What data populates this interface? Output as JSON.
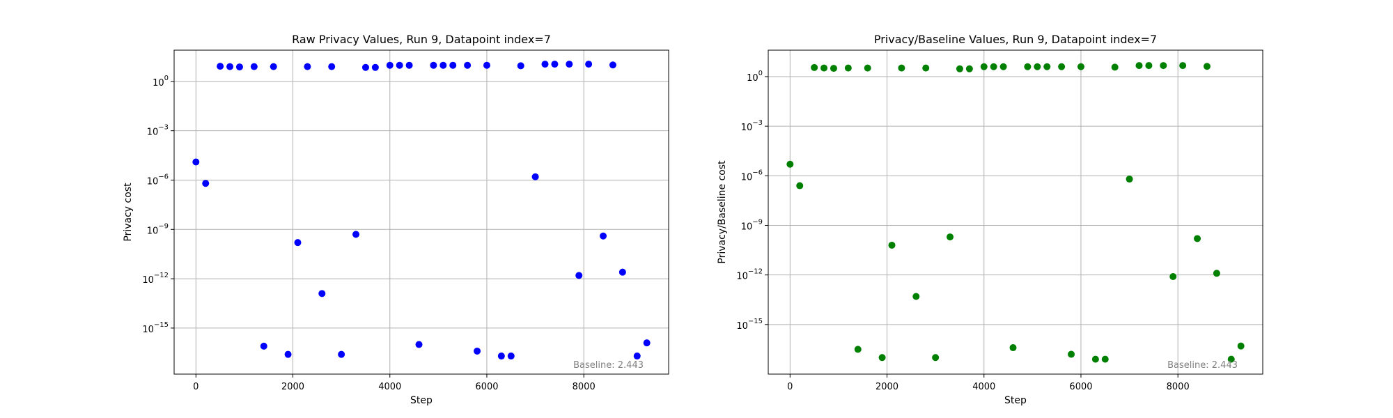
{
  "chart_data": [
    {
      "type": "scatter",
      "title": "Raw Privacy Values, Run 9, Datapoint index=7",
      "xlabel": "Step",
      "ylabel": "Privacy cost",
      "yscale": "log",
      "xlim": [
        -450,
        9750
      ],
      "ylim_exp": [
        -17.8,
        1.9
      ],
      "xticks": [
        0,
        2000,
        4000,
        6000,
        8000
      ],
      "xtick_labels": [
        "0",
        "2000",
        "4000",
        "6000",
        "8000"
      ],
      "yticks_exp": [
        0,
        -3,
        -6,
        -9,
        -12,
        -15
      ],
      "ytick_labels": [
        "10^0",
        "10^-3",
        "10^-6",
        "10^-9",
        "10^-12",
        "10^-15"
      ],
      "grid": true,
      "color": "#0000ff",
      "annotation": "Baseline: 2.443",
      "points": [
        {
          "x": 0,
          "y_exp": -4.9
        },
        {
          "x": 200,
          "y_exp": -6.2
        },
        {
          "x": 500,
          "y_exp": 0.92
        },
        {
          "x": 700,
          "y_exp": 0.9
        },
        {
          "x": 900,
          "y_exp": 0.88
        },
        {
          "x": 1200,
          "y_exp": 0.9
        },
        {
          "x": 1400,
          "y_exp": -16.1
        },
        {
          "x": 1600,
          "y_exp": 0.9
        },
        {
          "x": 1900,
          "y_exp": -16.6
        },
        {
          "x": 2100,
          "y_exp": -9.8
        },
        {
          "x": 2300,
          "y_exp": 0.9
        },
        {
          "x": 2600,
          "y_exp": -12.9
        },
        {
          "x": 2800,
          "y_exp": 0.9
        },
        {
          "x": 3000,
          "y_exp": -16.6
        },
        {
          "x": 3300,
          "y_exp": -9.3
        },
        {
          "x": 3500,
          "y_exp": 0.85
        },
        {
          "x": 3700,
          "y_exp": 0.85
        },
        {
          "x": 4000,
          "y_exp": 0.98
        },
        {
          "x": 4200,
          "y_exp": 0.98
        },
        {
          "x": 4400,
          "y_exp": 0.98
        },
        {
          "x": 4600,
          "y_exp": -16.0
        },
        {
          "x": 4900,
          "y_exp": 0.98
        },
        {
          "x": 5100,
          "y_exp": 0.98
        },
        {
          "x": 5300,
          "y_exp": 0.98
        },
        {
          "x": 5600,
          "y_exp": 0.98
        },
        {
          "x": 5800,
          "y_exp": -16.4
        },
        {
          "x": 6000,
          "y_exp": 0.98
        },
        {
          "x": 6300,
          "y_exp": -16.7
        },
        {
          "x": 6500,
          "y_exp": -16.7
        },
        {
          "x": 6700,
          "y_exp": 0.95
        },
        {
          "x": 7000,
          "y_exp": -5.8
        },
        {
          "x": 7200,
          "y_exp": 1.05
        },
        {
          "x": 7400,
          "y_exp": 1.05
        },
        {
          "x": 7700,
          "y_exp": 1.05
        },
        {
          "x": 7900,
          "y_exp": -11.8
        },
        {
          "x": 8100,
          "y_exp": 1.05
        },
        {
          "x": 8400,
          "y_exp": -9.4
        },
        {
          "x": 8600,
          "y_exp": 1.0
        },
        {
          "x": 8800,
          "y_exp": -11.6
        },
        {
          "x": 9100,
          "y_exp": -16.7
        },
        {
          "x": 9300,
          "y_exp": -15.9
        }
      ]
    },
    {
      "type": "scatter",
      "title": "Privacy/Baseline Values, Run 9, Datapoint index=7",
      "xlabel": "Step",
      "ylabel": "Privacy/Baseline cost",
      "yscale": "log",
      "xlim": [
        -450,
        9750
      ],
      "ylim_exp": [
        -18.0,
        1.6
      ],
      "xticks": [
        0,
        2000,
        4000,
        6000,
        8000
      ],
      "xtick_labels": [
        "0",
        "2000",
        "4000",
        "6000",
        "8000"
      ],
      "yticks_exp": [
        0,
        -3,
        -6,
        -9,
        -12,
        -15
      ],
      "ytick_labels": [
        "10^0",
        "10^-3",
        "10^-6",
        "10^-9",
        "10^-12",
        "10^-15"
      ],
      "grid": true,
      "color": "#008000",
      "annotation": "Baseline: 2.443",
      "points": [
        {
          "x": 0,
          "y_exp": -5.3
        },
        {
          "x": 200,
          "y_exp": -6.6
        },
        {
          "x": 500,
          "y_exp": 0.55
        },
        {
          "x": 700,
          "y_exp": 0.52
        },
        {
          "x": 900,
          "y_exp": 0.5
        },
        {
          "x": 1200,
          "y_exp": 0.52
        },
        {
          "x": 1400,
          "y_exp": -16.5
        },
        {
          "x": 1600,
          "y_exp": 0.52
        },
        {
          "x": 1900,
          "y_exp": -17.0
        },
        {
          "x": 2100,
          "y_exp": -10.2
        },
        {
          "x": 2300,
          "y_exp": 0.52
        },
        {
          "x": 2600,
          "y_exp": -13.3
        },
        {
          "x": 2800,
          "y_exp": 0.52
        },
        {
          "x": 3000,
          "y_exp": -17.0
        },
        {
          "x": 3300,
          "y_exp": -9.7
        },
        {
          "x": 3500,
          "y_exp": 0.47
        },
        {
          "x": 3700,
          "y_exp": 0.47
        },
        {
          "x": 4000,
          "y_exp": 0.6
        },
        {
          "x": 4200,
          "y_exp": 0.6
        },
        {
          "x": 4400,
          "y_exp": 0.6
        },
        {
          "x": 4600,
          "y_exp": -16.4
        },
        {
          "x": 4900,
          "y_exp": 0.6
        },
        {
          "x": 5100,
          "y_exp": 0.6
        },
        {
          "x": 5300,
          "y_exp": 0.6
        },
        {
          "x": 5600,
          "y_exp": 0.6
        },
        {
          "x": 5800,
          "y_exp": -16.8
        },
        {
          "x": 6000,
          "y_exp": 0.6
        },
        {
          "x": 6300,
          "y_exp": -17.1
        },
        {
          "x": 6500,
          "y_exp": -17.1
        },
        {
          "x": 6700,
          "y_exp": 0.57
        },
        {
          "x": 7000,
          "y_exp": -6.2
        },
        {
          "x": 7200,
          "y_exp": 0.67
        },
        {
          "x": 7400,
          "y_exp": 0.67
        },
        {
          "x": 7700,
          "y_exp": 0.67
        },
        {
          "x": 7900,
          "y_exp": -12.1
        },
        {
          "x": 8100,
          "y_exp": 0.67
        },
        {
          "x": 8400,
          "y_exp": -9.8
        },
        {
          "x": 8600,
          "y_exp": 0.62
        },
        {
          "x": 8800,
          "y_exp": -11.9
        },
        {
          "x": 9100,
          "y_exp": -17.1
        },
        {
          "x": 9300,
          "y_exp": -16.3
        }
      ]
    }
  ]
}
